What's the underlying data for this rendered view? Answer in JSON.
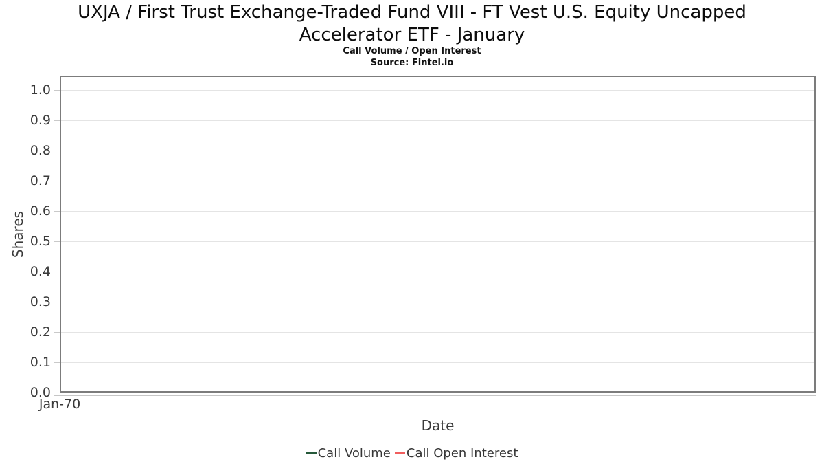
{
  "chart_data": {
    "type": "line",
    "title": "UXJA / First Trust Exchange-Traded Fund VIII - FT Vest U.S. Equity Uncapped Accelerator ETF - January",
    "subtitle": "Call Volume / Open Interest",
    "source": "Source: Fintel.io",
    "xlabel": "Date",
    "ylabel": "Shares",
    "xticks": [
      "Jan-70"
    ],
    "yticks": [
      "0.0",
      "0.1",
      "0.2",
      "0.3",
      "0.4",
      "0.5",
      "0.6",
      "0.7",
      "0.8",
      "0.9",
      "1.0"
    ],
    "ylim": [
      0,
      1.05
    ],
    "grid": "horizontal-only",
    "legend_position": "bottom-center",
    "legend": [
      {
        "name": "Call Volume",
        "color": "#26593a"
      },
      {
        "name": "Call Open Interest",
        "color": "#f15e5e"
      }
    ],
    "series": [
      {
        "name": "Call Volume",
        "color": "#26593a",
        "x": [],
        "values": []
      },
      {
        "name": "Call Open Interest",
        "color": "#f15e5e",
        "x": [],
        "values": []
      }
    ],
    "note": "Plot area is empty; no data points are drawn"
  }
}
